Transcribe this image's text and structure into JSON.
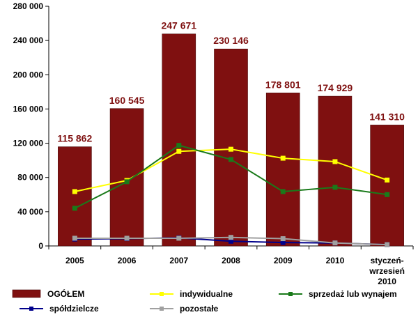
{
  "chart_data": {
    "type": "bar",
    "categories": [
      [
        "2005"
      ],
      [
        "2006"
      ],
      [
        "2007"
      ],
      [
        "2008"
      ],
      [
        "2009"
      ],
      [
        "2010"
      ],
      [
        "styczeń-",
        "wrzesień",
        "2010"
      ]
    ],
    "ylim": [
      0,
      280000
    ],
    "yticks": [
      0,
      40000,
      80000,
      120000,
      160000,
      200000,
      240000,
      280000
    ],
    "ytick_labels": [
      "0",
      "40 000",
      "80 000",
      "120 000",
      "160 000",
      "200 000",
      "240 000",
      "280 000"
    ],
    "grid": false,
    "legend_position": "bottom",
    "bar_series": {
      "name": "OGÓŁEM",
      "color": "#7f1010",
      "values": [
        115862,
        160545,
        247671,
        230146,
        178801,
        174929,
        141310
      ],
      "labels": [
        "115 862",
        "160 545",
        "247 671",
        "230 146",
        "178 801",
        "174 929",
        "141 310"
      ]
    },
    "line_series": [
      {
        "name": "indywidualne",
        "color": "#ffff00",
        "values": [
          63500,
          76500,
          110500,
          113000,
          102500,
          98500,
          77000
        ]
      },
      {
        "name": "sprzedaż lub wynajem",
        "color": "#1a7a1a",
        "values": [
          44000,
          75000,
          117500,
          101000,
          63500,
          68500,
          60000
        ]
      },
      {
        "name": "spółdzielcze",
        "color": "#00008b",
        "values": [
          8000,
          8500,
          9500,
          5500,
          4000,
          3500,
          1500
        ]
      },
      {
        "name": "pozostałe",
        "color": "#a0a0a0",
        "values": [
          9000,
          9000,
          9000,
          10000,
          8500,
          3500,
          1500
        ]
      }
    ]
  }
}
